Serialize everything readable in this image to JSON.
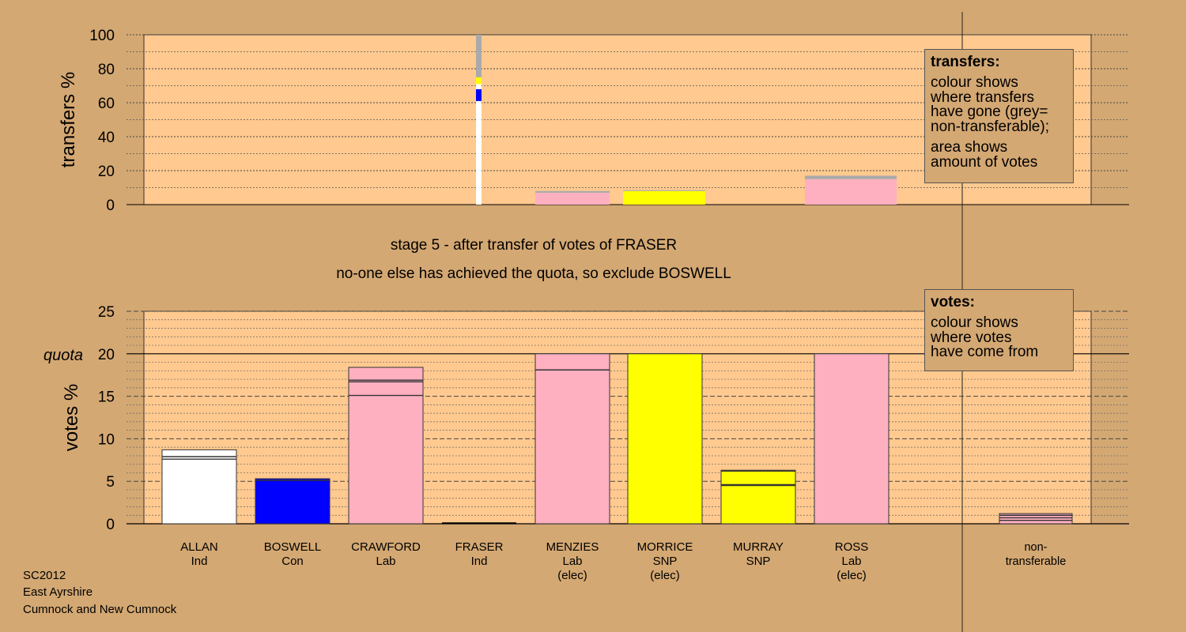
{
  "stage": {
    "title": "stage 5 - after transfer of votes of FRASER",
    "note": "no-one else has achieved the quota, so exclude BOSWELL"
  },
  "legend_transfers": {
    "title": "transfers:",
    "text1": "colour shows\nwhere transfers\nhave gone (grey=\nnon-transferable);",
    "text2": "area shows\namount of votes"
  },
  "legend_votes": {
    "title": "votes:",
    "text1": "colour shows\nwhere votes\nhave come from"
  },
  "footer": {
    "line1": "SC2012",
    "line2": "East Ayrshire",
    "line3": "Cumnock and New Cumnock"
  },
  "colors": {
    "background": "#d4a873",
    "plot_bg": "#ffc98f",
    "Ind": "#ffffff",
    "Con": "#0000ff",
    "Lab": "#ffb0c0",
    "SNP": "#ffff00",
    "nontransferable": "#aaaaaa"
  },
  "chart_data": [
    {
      "type": "bar",
      "name": "transfers",
      "ylabel": "transfers %",
      "ylim": [
        0,
        100
      ],
      "yticks": [
        0,
        20,
        40,
        60,
        80,
        100
      ],
      "categories": [
        "ALLAN",
        "BOSWELL",
        "CRAWFORD",
        "FRASER",
        "MENZIES",
        "MORRICE",
        "MURRAY",
        "ROSS",
        "non-transferable"
      ],
      "transferred_from": "FRASER",
      "fraser_column_segments": [
        {
          "to": "ALLAN",
          "party": "Ind",
          "from": 0,
          "to_value": 61
        },
        {
          "to": "BOSWELL",
          "party": "Con",
          "from": 61,
          "to_value": 68
        },
        {
          "to": "ALLAN",
          "party": "Ind",
          "from": 68,
          "to_value": 71
        },
        {
          "to": "MURRAY",
          "party": "SNP",
          "from": 71,
          "to_value": 75
        },
        {
          "to": "non-transferable",
          "party": "nontransferable",
          "from": 75,
          "to_value": 100
        }
      ],
      "surplus_blocks": [
        {
          "candidate": "MENZIES",
          "party": "Lab",
          "transferable": 7,
          "nontransferable": 1
        },
        {
          "candidate": "MORRICE",
          "party": "SNP",
          "transferable": 8,
          "nontransferable": 0.5
        },
        {
          "candidate": "ROSS",
          "party": "Lab",
          "transferable": 15,
          "nontransferable": 2
        }
      ],
      "legend": "top-right"
    },
    {
      "type": "bar",
      "name": "votes",
      "ylabel": "votes %",
      "ylim": [
        0,
        25
      ],
      "yticks": [
        0,
        5,
        10,
        15,
        20,
        25
      ],
      "quota": 20,
      "quota_label": "quota",
      "candidates": [
        {
          "name": "ALLAN",
          "party": "Ind",
          "elected": false,
          "total": 8.7,
          "segments": [
            7.6,
            7.9
          ]
        },
        {
          "name": "BOSWELL",
          "party": "Con",
          "elected": false,
          "total": 5.3,
          "segments": [
            5.1
          ]
        },
        {
          "name": "CRAWFORD",
          "party": "Lab",
          "elected": false,
          "total": 18.4,
          "segments": [
            15.1,
            16.7,
            16.9
          ]
        },
        {
          "name": "FRASER",
          "party": "Ind",
          "elected": false,
          "total": 0,
          "segments": []
        },
        {
          "name": "MENZIES",
          "party": "Lab",
          "elected": true,
          "total": 20,
          "segments": [
            18.1
          ]
        },
        {
          "name": "MORRICE",
          "party": "SNP",
          "elected": true,
          "total": 20,
          "segments": []
        },
        {
          "name": "MURRAY",
          "party": "SNP",
          "elected": false,
          "total": 6.3,
          "segments": [
            4.5,
            4.6,
            6.2
          ]
        },
        {
          "name": "ROSS",
          "party": "Lab",
          "elected": true,
          "total": 20,
          "segments": []
        },
        {
          "name": "non-transferable",
          "party": "",
          "elected": false,
          "total": 1.2,
          "segments": [
            0.4,
            0.7,
            1.0
          ]
        }
      ],
      "labels": [
        {
          "name": "ALLAN",
          "line2": "Ind",
          "line3": ""
        },
        {
          "name": "BOSWELL",
          "line2": "Con",
          "line3": ""
        },
        {
          "name": "CRAWFORD",
          "line2": "Lab",
          "line3": ""
        },
        {
          "name": "FRASER",
          "line2": "Ind",
          "line3": ""
        },
        {
          "name": "MENZIES",
          "line2": "Lab",
          "line3": "(elec)"
        },
        {
          "name": "MORRICE",
          "line2": "SNP",
          "line3": "(elec)"
        },
        {
          "name": "MURRAY",
          "line2": "SNP",
          "line3": ""
        },
        {
          "name": "ROSS",
          "line2": "Lab",
          "line3": "(elec)"
        },
        {
          "name": "non-",
          "line2": "transferable",
          "line3": ""
        }
      ],
      "legend": "top-right"
    }
  ]
}
